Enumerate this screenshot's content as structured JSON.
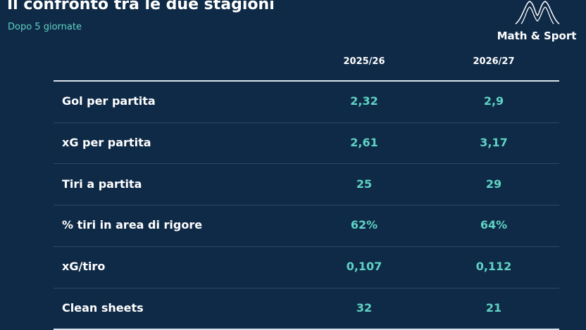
{
  "header": {
    "title": "Il confronto tra le due stagioni",
    "subtitle": "Dopo 5 giornate"
  },
  "logo": {
    "text": "Math & Sport"
  },
  "table": {
    "columns": [
      "2025/26",
      "2026/27"
    ],
    "rows": [
      [
        "Gol per partita",
        "2,32",
        "2,9"
      ],
      [
        "xG per partita",
        "2,61",
        "3,17"
      ],
      [
        "Tiri a partita",
        "25",
        "29"
      ],
      [
        "% tiri in area di rigore",
        "62%",
        "64%"
      ],
      [
        "xG/tiro",
        "0,107",
        "0,112"
      ],
      [
        "Clean sheets",
        "32",
        "21"
      ]
    ]
  }
}
